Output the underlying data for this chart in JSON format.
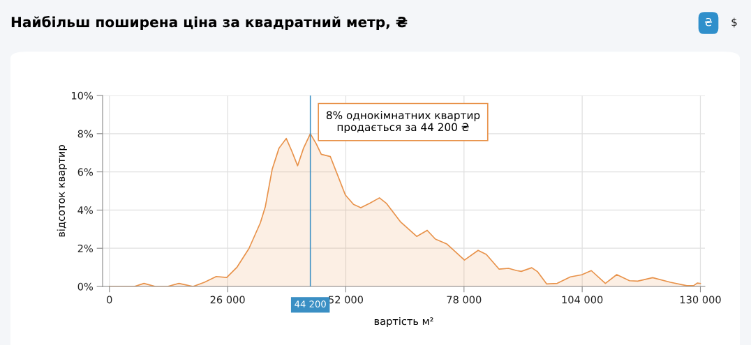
{
  "chart_data": {
    "type": "area",
    "title": "Найбільш поширена ціна за квадратний метр, ₴",
    "xlabel": "вартість м²",
    "ylabel": "відсоток квартир",
    "x": [
      0,
      5500,
      7600,
      10100,
      12800,
      15300,
      18400,
      20900,
      23500,
      25800,
      28100,
      30700,
      33200,
      34300,
      35800,
      37300,
      38900,
      40100,
      41400,
      42700,
      44200,
      45500,
      46600,
      48600,
      50100,
      51900,
      53700,
      55300,
      57300,
      59400,
      60900,
      64000,
      67600,
      69900,
      71700,
      74200,
      78100,
      81100,
      82900,
      85700,
      87800,
      89600,
      90600,
      92900,
      94200,
      96200,
      98500,
      101400,
      103900,
      106000,
      109100,
      111600,
      114400,
      116200,
      119500,
      123400,
      127000,
      128500,
      129300,
      130000
    ],
    "series": [
      {
        "color": "#e8924a",
        "values": [
          0,
          0,
          0.16,
          0,
          0,
          0.16,
          0,
          0.22,
          0.52,
          0.47,
          1.02,
          1.99,
          3.33,
          4.18,
          6.13,
          7.24,
          7.75,
          7.1,
          6.32,
          7.24,
          8.0,
          7.47,
          6.92,
          6.8,
          5.89,
          4.79,
          4.3,
          4.12,
          4.36,
          4.64,
          4.36,
          3.39,
          2.62,
          2.94,
          2.48,
          2.23,
          1.38,
          1.89,
          1.68,
          0.91,
          0.95,
          0.83,
          0.79,
          0.98,
          0.77,
          0.13,
          0.16,
          0.5,
          0.61,
          0.83,
          0.16,
          0.62,
          0.3,
          0.28,
          0.46,
          0.22,
          0.04,
          0.04,
          0.18,
          0.16
        ]
      }
    ],
    "xlim": [
      -1500,
      131000
    ],
    "xticks": [
      {
        "value": 0,
        "label": "0"
      },
      {
        "value": 26000,
        "label": "26 000"
      },
      {
        "value": 52000,
        "label": "52 000"
      },
      {
        "value": 78000,
        "label": "78 000"
      },
      {
        "value": 104000,
        "label": "104 000"
      },
      {
        "value": 130000,
        "label": "130 000"
      }
    ],
    "ylim": [
      0,
      10
    ],
    "yticks": [
      {
        "value": 0,
        "label": "0%"
      },
      {
        "value": 2,
        "label": "2%"
      },
      {
        "value": 4,
        "label": "4%"
      },
      {
        "value": 6,
        "label": "6%"
      },
      {
        "value": 8,
        "label": "8%"
      },
      {
        "value": 10,
        "label": "10%"
      }
    ],
    "grid": true,
    "marker": "none",
    "line_style": "solid",
    "ref_lines": [
      {
        "axis": "x",
        "value": 44200,
        "label": "44 200",
        "color": "#3a8fc4"
      }
    ],
    "annotations": [
      {
        "text": "8% однокімнатних квартир\nпродається за 44 200 ₴",
        "x": 44200,
        "y": 8
      },
      "₴",
      "$"
    ]
  }
}
